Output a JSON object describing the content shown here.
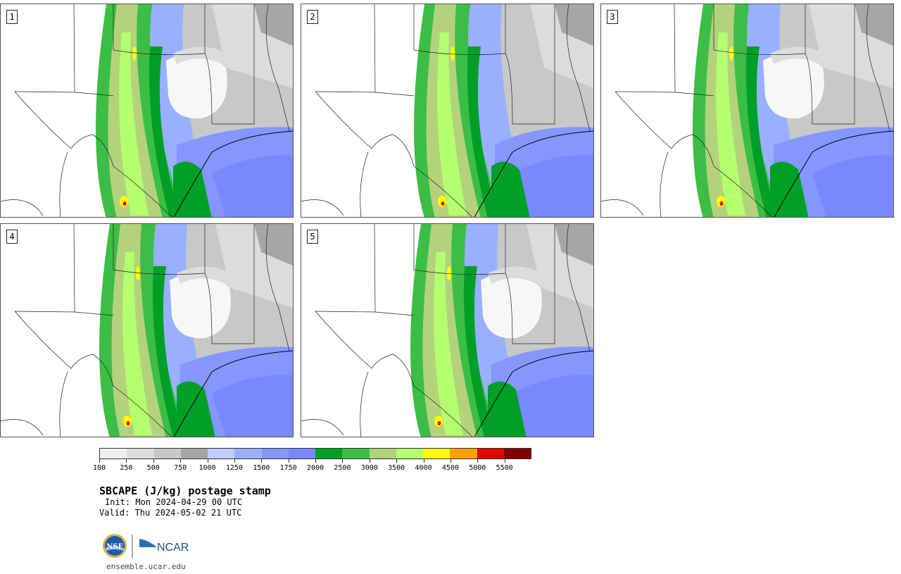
{
  "panels": [
    {
      "label": "1"
    },
    {
      "label": "2"
    },
    {
      "label": "3"
    },
    {
      "label": "4"
    },
    {
      "label": "5"
    }
  ],
  "colorbar": {
    "colors": [
      "#f0f0f0",
      "#dcdcdc",
      "#c8c8c8",
      "#a6a6a6",
      "#c0ccff",
      "#98b0ff",
      "#8596ff",
      "#7888ff",
      "#00a028",
      "#3cbe46",
      "#b4d27c",
      "#b4ff6e",
      "#ffff00",
      "#ffa000",
      "#e60000",
      "#800000"
    ],
    "tick_labels": [
      "100",
      "250",
      "500",
      "750",
      "1000",
      "1250",
      "1500",
      "1750",
      "2000",
      "2500",
      "3000",
      "3500",
      "4000",
      "4500",
      "5000",
      "5500"
    ]
  },
  "title": "SBCAPE (J/kg) postage stamp",
  "init_line": "Init: Mon 2024-04-29 00 UTC",
  "valid_line": "Valid: Thu 2024-05-02 21 UTC",
  "logos": {
    "nsf": "NSF",
    "ncar": "NCAR"
  },
  "url": "ensemble.ucar.edu"
}
